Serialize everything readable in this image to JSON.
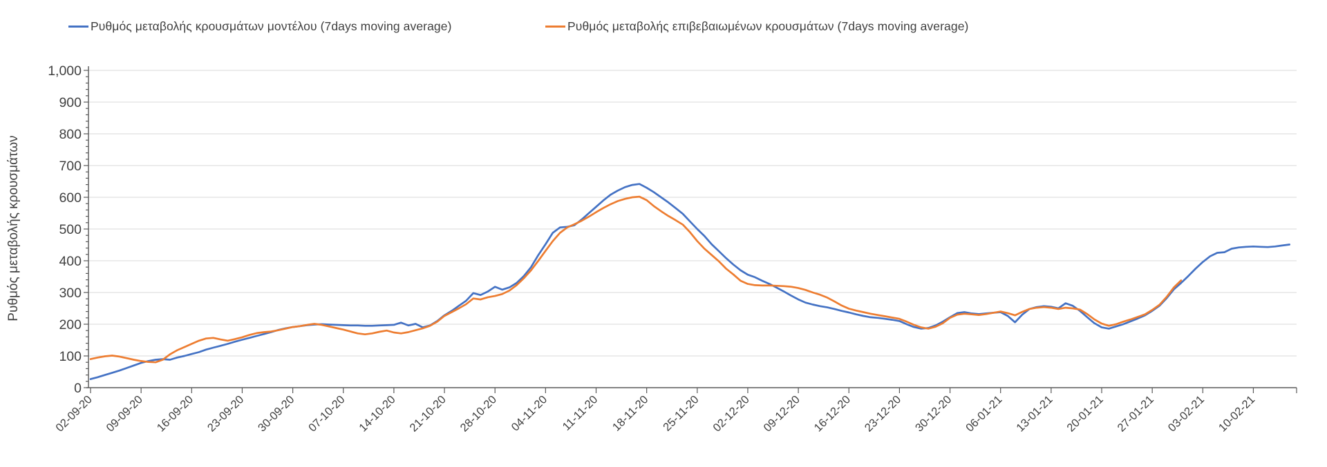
{
  "colors": {
    "model_line": "#4472C4",
    "confirmed_line": "#ED7D31",
    "grid": "#D9D9D9",
    "axis": "#595959",
    "text": "#404040"
  },
  "y_axis": {
    "title": "Ρυθμός μεταβολής κρουσμάτων",
    "tick_labels": [
      "1,000",
      "900",
      "800",
      "700",
      "600",
      "500",
      "400",
      "300",
      "200",
      "100",
      "0"
    ]
  },
  "x_axis": {
    "tick_labels": [
      "02-09-20",
      "09-09-20",
      "16-09-20",
      "23-09-20",
      "30-09-20",
      "07-10-20",
      "14-10-20",
      "21-10-20",
      "28-10-20",
      "04-11-20",
      "11-11-20",
      "18-11-20",
      "25-11-20",
      "02-12-20",
      "09-12-20",
      "16-12-20",
      "23-12-20",
      "30-12-20",
      "06-01-21",
      "13-01-21",
      "20-01-21",
      "27-01-21",
      "03-02-21",
      "10-02-21"
    ]
  },
  "chart_data": {
    "type": "line",
    "title": "",
    "ylabel": "Ρυθμός μεταβολής κρουσμάτων",
    "xlabel": "",
    "ylim": [
      0,
      1000
    ],
    "y_major_step": 100,
    "y_minor_step": 20,
    "grid": "horizontal-only",
    "legend_position": "top",
    "x_unit": "daily points starting 02-09-20, labeled ticks every 7 days",
    "x_tick_labels": [
      "02-09-20",
      "09-09-20",
      "16-09-20",
      "23-09-20",
      "30-09-20",
      "07-10-20",
      "14-10-20",
      "21-10-20",
      "28-10-20",
      "04-11-20",
      "11-11-20",
      "18-11-20",
      "25-11-20",
      "02-12-20",
      "09-12-20",
      "16-12-20",
      "23-12-20",
      "30-12-20",
      "06-01-21",
      "13-01-21",
      "20-01-21",
      "27-01-21",
      "03-02-21",
      "10-02-21"
    ],
    "series": [
      {
        "name": "Ρυθμός μεταβολής κρουσμάτων μοντέλου (7days moving average)",
        "color": "#4472C4",
        "values": [
          27,
          33,
          40,
          47,
          54,
          62,
          70,
          78,
          84,
          88,
          90,
          88,
          95,
          100,
          106,
          112,
          120,
          126,
          132,
          138,
          145,
          151,
          157,
          163,
          169,
          175,
          182,
          187,
          191,
          194,
          197,
          199,
          200,
          199,
          198,
          197,
          196,
          196,
          195,
          195,
          196,
          197,
          198,
          205,
          196,
          201,
          190,
          196,
          210,
          228,
          242,
          258,
          274,
          298,
          292,
          303,
          318,
          309,
          316,
          330,
          352,
          380,
          418,
          452,
          488,
          505,
          507,
          512,
          530,
          550,
          570,
          590,
          608,
          621,
          632,
          639,
          642,
          630,
          616,
          600,
          584,
          566,
          548,
          524,
          500,
          478,
          452,
          430,
          408,
          388,
          370,
          356,
          348,
          337,
          327,
          315,
          303,
          290,
          278,
          268,
          262,
          257,
          253,
          248,
          242,
          237,
          231,
          226,
          222,
          220,
          217,
          214,
          210,
          200,
          191,
          186,
          188,
          196,
          208,
          222,
          235,
          238,
          234,
          232,
          234,
          236,
          238,
          226,
          206,
          230,
          248,
          254,
          257,
          255,
          250,
          266,
          258,
          242,
          222,
          203,
          190,
          186,
          193,
          200,
          209,
          218,
          228,
          242,
          258,
          282,
          310,
          330,
          352,
          375,
          396,
          414,
          425,
          427,
          438,
          442,
          444,
          445,
          444,
          443,
          445,
          448,
          451
        ]
      },
      {
        "name": "Ρυθμός μεταβολής επιβεβαιωμένων κρουσμάτων (7days moving average)",
        "color": "#ED7D31",
        "values": [
          90,
          95,
          99,
          101,
          98,
          93,
          88,
          84,
          81,
          80,
          88,
          105,
          118,
          128,
          138,
          148,
          155,
          157,
          152,
          148,
          153,
          159,
          166,
          172,
          175,
          177,
          181,
          186,
          191,
          194,
          198,
          201,
          198,
          193,
          188,
          183,
          177,
          171,
          168,
          171,
          176,
          180,
          174,
          171,
          175,
          181,
          187,
          195,
          208,
          226,
          238,
          250,
          263,
          281,
          278,
          285,
          289,
          295,
          306,
          323,
          345,
          370,
          400,
          431,
          462,
          488,
          505,
          515,
          526,
          539,
          553,
          566,
          578,
          588,
          595,
          600,
          602,
          591,
          572,
          556,
          541,
          528,
          514,
          490,
          462,
          438,
          418,
          398,
          375,
          357,
          337,
          327,
          323,
          322,
          322,
          321,
          320,
          318,
          314,
          308,
          300,
          293,
          284,
          272,
          259,
          249,
          243,
          238,
          233,
          229,
          225,
          221,
          217,
          208,
          198,
          190,
          186,
          192,
          203,
          220,
          230,
          233,
          231,
          229,
          232,
          236,
          240,
          235,
          228,
          239,
          248,
          252,
          254,
          252,
          248,
          252,
          250,
          246,
          232,
          215,
          202,
          195,
          200,
          208,
          215,
          223,
          231,
          245,
          261,
          286,
          316,
          338
        ]
      }
    ]
  }
}
